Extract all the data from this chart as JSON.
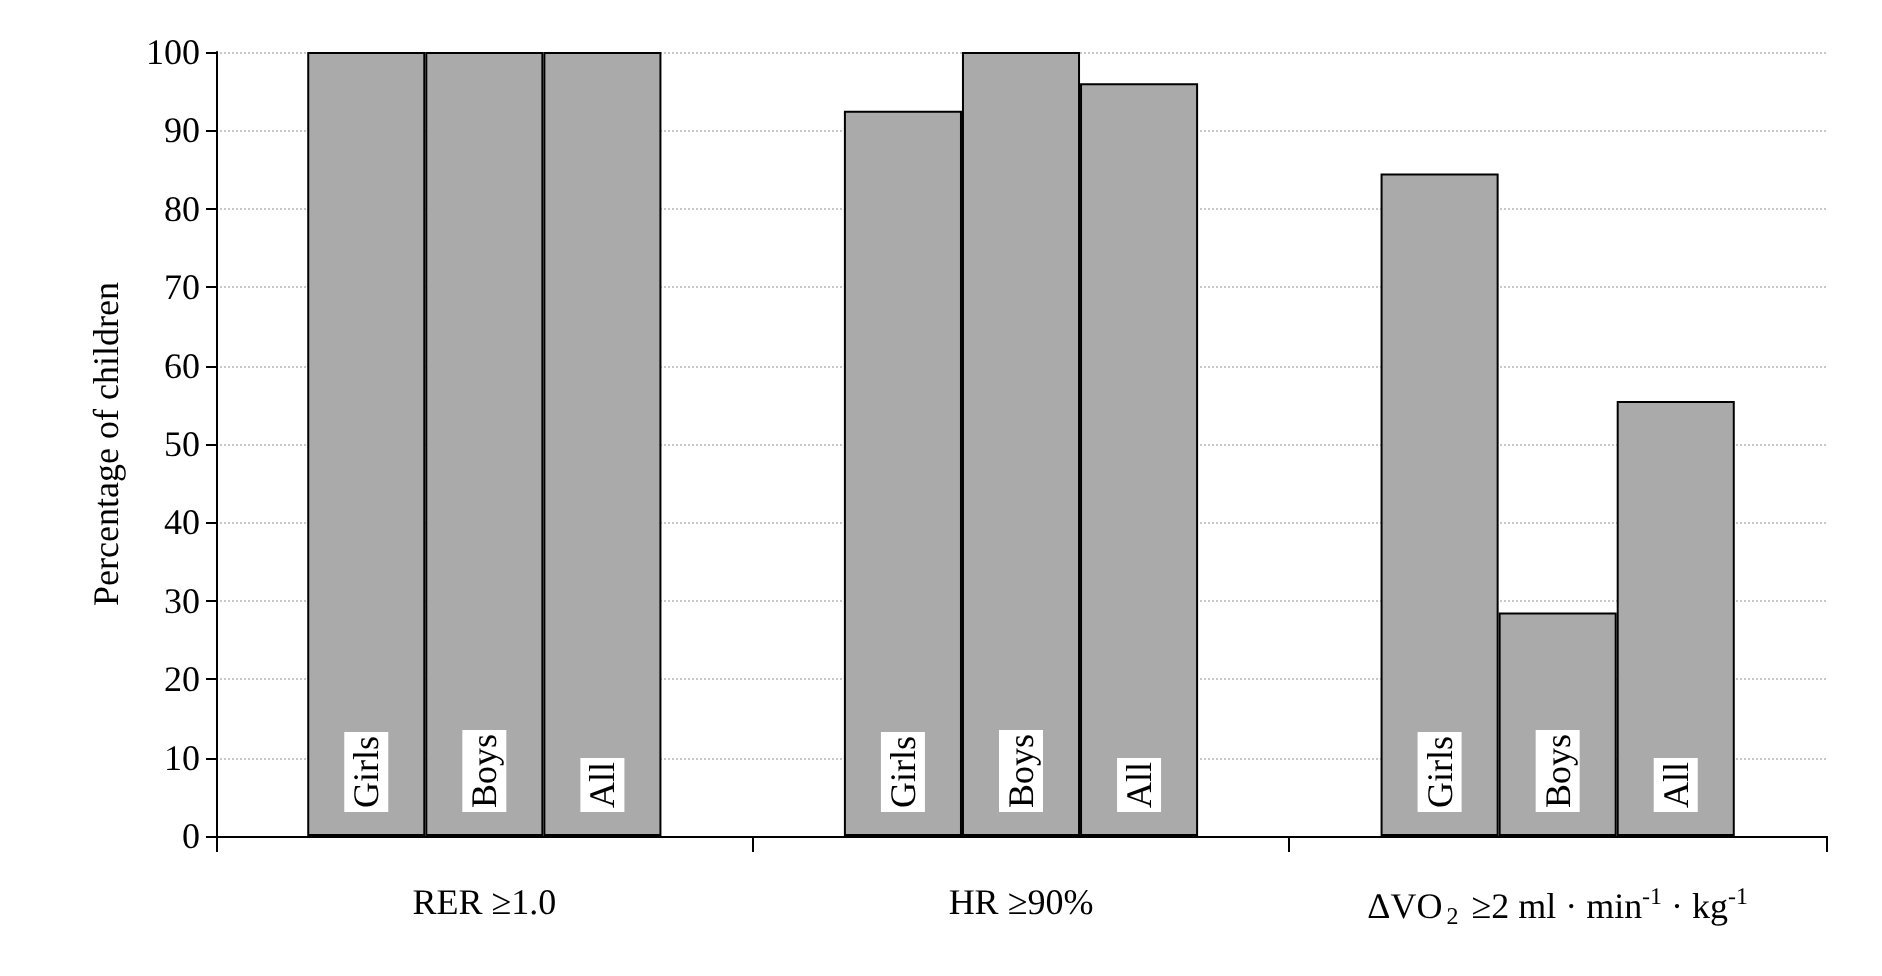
{
  "chart_data": {
    "type": "bar",
    "ylabel": "Percentage of children",
    "categories": [
      "RER ≥1.0",
      "HR ≥90%",
      "ΔVO$_{2}$ ≥2 ml · min$^{-1}$ · kg$^{-1}$"
    ],
    "series": [
      {
        "name": "Girls",
        "color": "#aaaaaa",
        "values": [
          100,
          92.5,
          84.5
        ]
      },
      {
        "name": "Boys",
        "color": "#aaaaaa",
        "values": [
          100,
          100,
          28.5
        ]
      },
      {
        "name": "All",
        "color": "#aaaaaa",
        "values": [
          100,
          96,
          55.5
        ]
      }
    ],
    "ylim": [
      0,
      100
    ],
    "yticks": [
      0,
      10,
      20,
      30,
      40,
      50,
      60,
      70,
      80,
      90,
      100
    ],
    "grid": "y"
  }
}
